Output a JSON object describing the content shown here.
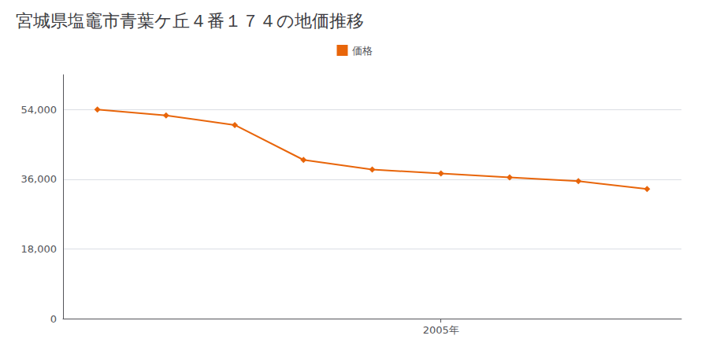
{
  "chart_data": {
    "type": "line",
    "title": "宮城県塩竈市青葉ケ丘４番１７４の地価推移",
    "x": [
      2000,
      2001,
      2002,
      2003,
      2004,
      2005,
      2006,
      2007,
      2008
    ],
    "series": [
      {
        "name": "価格",
        "color": "#e8650a",
        "marker": "diamond",
        "values": [
          54000,
          52500,
          50000,
          41000,
          38500,
          37500,
          36500,
          35500,
          33500
        ]
      }
    ],
    "xlim": [
      1999.5,
      2008.5
    ],
    "xticks": [
      {
        "value": 2005,
        "label": "2005年"
      }
    ],
    "ylim": [
      0,
      63000
    ],
    "yticks": [
      0,
      {
        "value": 18000,
        "label": "18,000"
      },
      {
        "value": 36000,
        "label": "36,000"
      },
      {
        "value": 54000,
        "label": "54,000"
      }
    ],
    "grid": true,
    "legend": "top"
  }
}
